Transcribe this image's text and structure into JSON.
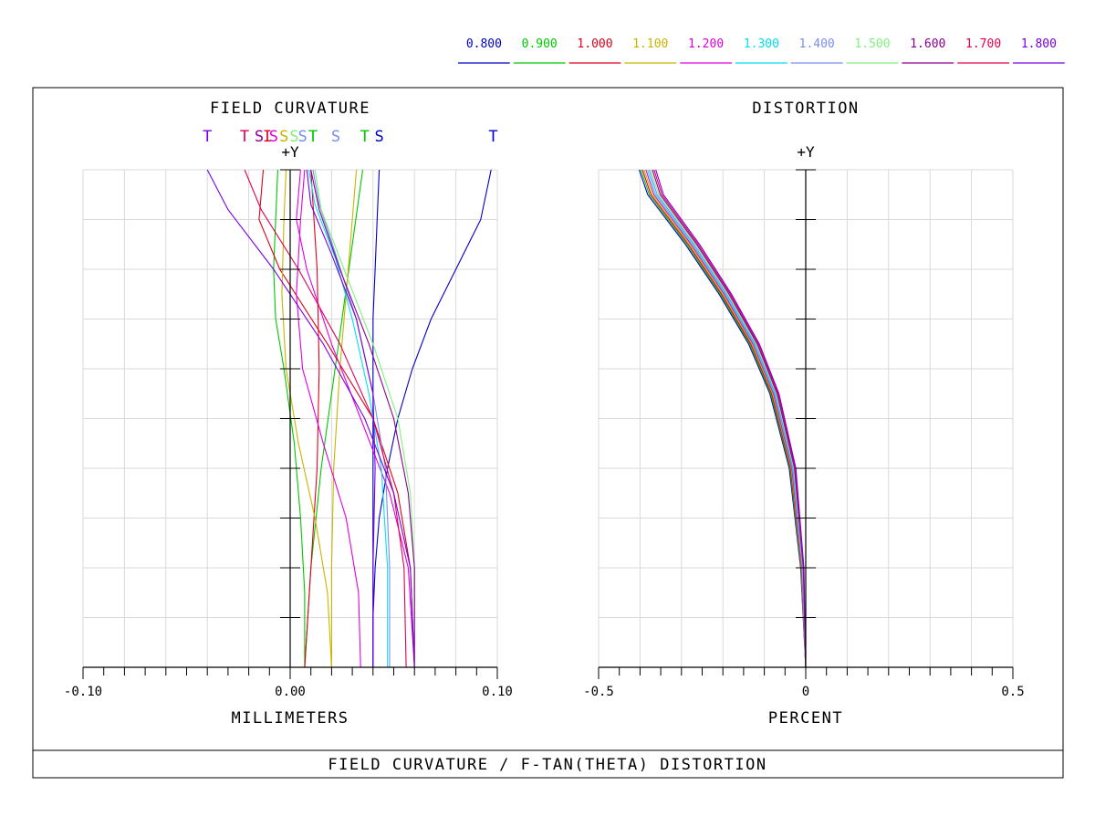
{
  "legend": [
    {
      "label": "0.800",
      "color": "#0000c8"
    },
    {
      "label": "0.900",
      "color": "#00c800"
    },
    {
      "label": "1.000",
      "color": "#e0001c"
    },
    {
      "label": "1.100",
      "color": "#c8b400"
    },
    {
      "label": "1.200",
      "color": "#e000e0"
    },
    {
      "label": "1.300",
      "color": "#00e0f0"
    },
    {
      "label": "1.400",
      "color": "#7a8cf0"
    },
    {
      "label": "1.500",
      "color": "#80f080"
    },
    {
      "label": "1.600",
      "color": "#8a0090"
    },
    {
      "label": "1.700",
      "color": "#e00050"
    },
    {
      "label": "1.800",
      "color": "#7800e0"
    }
  ],
  "footer_title": "FIELD CURVATURE / F-TAN(THETA) DISTORTION",
  "chart_data": [
    {
      "type": "line",
      "title": "FIELD CURVATURE",
      "ylabel": "+Y",
      "xlabel": "MILLIMETERS",
      "xlim": [
        -0.1,
        0.1
      ],
      "ylim": [
        0,
        1
      ],
      "grid": true,
      "x_tick_labels": [
        "-0.10",
        "0.00",
        "0.10"
      ],
      "x_tick_values": [
        -0.1,
        0.0,
        0.1
      ],
      "top_marks": [
        {
          "text": "T",
          "x": -0.04,
          "color": "#7800e0"
        },
        {
          "text": "T",
          "x": -0.022,
          "color": "#e00050"
        },
        {
          "text": "S",
          "x": -0.015,
          "color": "#8a0090"
        },
        {
          "text": "I",
          "x": -0.011,
          "color": "#e0001c"
        },
        {
          "text": "S",
          "x": -0.008,
          "color": "#e000e0"
        },
        {
          "text": "S",
          "x": -0.003,
          "color": "#c8b400"
        },
        {
          "text": "S",
          "x": 0.002,
          "color": "#80f080"
        },
        {
          "text": "S",
          "x": 0.006,
          "color": "#7a8cf0"
        },
        {
          "text": "T",
          "x": 0.011,
          "color": "#00c800"
        },
        {
          "text": "S",
          "x": 0.022,
          "color": "#7a8cf0"
        },
        {
          "text": "T",
          "x": 0.036,
          "color": "#00c800"
        },
        {
          "text": "S",
          "x": 0.043,
          "color": "#0000c8"
        },
        {
          "text": "T",
          "x": 0.098,
          "color": "#0000c8"
        }
      ],
      "series": [
        {
          "color": "#0000c8",
          "points": [
            [
              0.04,
              0
            ],
            [
              0.04,
              0.1
            ],
            [
              0.041,
              0.2
            ],
            [
              0.043,
              0.3
            ],
            [
              0.047,
              0.4
            ],
            [
              0.052,
              0.5
            ],
            [
              0.059,
              0.6
            ],
            [
              0.068,
              0.7
            ],
            [
              0.08,
              0.8
            ],
            [
              0.092,
              0.9
            ],
            [
              0.097,
              1.0
            ]
          ]
        },
        {
          "color": "#0000c8",
          "points": [
            [
              0.04,
              0
            ],
            [
              0.04,
              0.15
            ],
            [
              0.04,
              0.3
            ],
            [
              0.04,
              0.45
            ],
            [
              0.04,
              0.6
            ],
            [
              0.04,
              0.7
            ],
            [
              0.041,
              0.8
            ],
            [
              0.042,
              0.9
            ],
            [
              0.043,
              1.0
            ]
          ]
        },
        {
          "color": "#00c800",
          "points": [
            [
              0.007,
              0
            ],
            [
              0.007,
              0.15
            ],
            [
              0.005,
              0.3
            ],
            [
              0.002,
              0.45
            ],
            [
              -0.003,
              0.6
            ],
            [
              -0.007,
              0.7
            ],
            [
              -0.008,
              0.8
            ],
            [
              -0.007,
              0.9
            ],
            [
              -0.006,
              1.0
            ]
          ]
        },
        {
          "color": "#00c800",
          "points": [
            [
              0.007,
              0
            ],
            [
              0.01,
              0.2
            ],
            [
              0.015,
              0.4
            ],
            [
              0.02,
              0.55
            ],
            [
              0.025,
              0.7
            ],
            [
              0.03,
              0.85
            ],
            [
              0.035,
              1.0
            ]
          ]
        },
        {
          "color": "#e0001c",
          "points": [
            [
              0.007,
              0
            ],
            [
              0.01,
              0.2
            ],
            [
              0.013,
              0.4
            ],
            [
              0.014,
              0.6
            ],
            [
              0.013,
              0.8
            ],
            [
              0.01,
              1.0
            ]
          ]
        },
        {
          "color": "#e0001c",
          "points": [
            [
              0.06,
              0
            ],
            [
              0.058,
              0.2
            ],
            [
              0.052,
              0.35
            ],
            [
              0.04,
              0.5
            ],
            [
              0.018,
              0.65
            ],
            [
              -0.005,
              0.8
            ],
            [
              -0.015,
              0.9
            ],
            [
              -0.013,
              1.0
            ]
          ]
        },
        {
          "color": "#c8b400",
          "points": [
            [
              0.02,
              0
            ],
            [
              0.018,
              0.15
            ],
            [
              0.012,
              0.3
            ],
            [
              0.004,
              0.45
            ],
            [
              -0.002,
              0.6
            ],
            [
              -0.004,
              0.75
            ],
            [
              -0.003,
              0.9
            ],
            [
              -0.002,
              1.0
            ]
          ]
        },
        {
          "color": "#c8b400",
          "points": [
            [
              0.02,
              0
            ],
            [
              0.02,
              0.2
            ],
            [
              0.021,
              0.4
            ],
            [
              0.024,
              0.6
            ],
            [
              0.028,
              0.8
            ],
            [
              0.032,
              1.0
            ]
          ]
        },
        {
          "color": "#e000e0",
          "points": [
            [
              0.034,
              0
            ],
            [
              0.033,
              0.15
            ],
            [
              0.027,
              0.3
            ],
            [
              0.016,
              0.45
            ],
            [
              0.006,
              0.6
            ],
            [
              0.003,
              0.75
            ],
            [
              0.005,
              0.9
            ],
            [
              0.007,
              1.0
            ]
          ]
        },
        {
          "color": "#e000e0",
          "points": [
            [
              0.06,
              0
            ],
            [
              0.057,
              0.2
            ],
            [
              0.048,
              0.35
            ],
            [
              0.034,
              0.5
            ],
            [
              0.02,
              0.65
            ],
            [
              0.008,
              0.8
            ],
            [
              0.003,
              0.9
            ],
            [
              0.005,
              1.0
            ]
          ]
        },
        {
          "color": "#00e0f0",
          "points": [
            [
              0.047,
              0
            ],
            [
              0.047,
              0.2
            ],
            [
              0.044,
              0.4
            ],
            [
              0.038,
              0.55
            ],
            [
              0.03,
              0.7
            ],
            [
              0.022,
              0.82
            ],
            [
              0.012,
              0.93
            ],
            [
              0.009,
              1.0
            ]
          ]
        },
        {
          "color": "#7a8cf0",
          "points": [
            [
              0.048,
              0
            ],
            [
              0.048,
              0.2
            ],
            [
              0.046,
              0.4
            ],
            [
              0.04,
              0.55
            ],
            [
              0.032,
              0.7
            ],
            [
              0.022,
              0.83
            ],
            [
              0.014,
              0.93
            ],
            [
              0.011,
              1.0
            ]
          ]
        },
        {
          "color": "#80f080",
          "points": [
            [
              0.06,
              0
            ],
            [
              0.06,
              0.2
            ],
            [
              0.058,
              0.35
            ],
            [
              0.052,
              0.5
            ],
            [
              0.04,
              0.65
            ],
            [
              0.026,
              0.8
            ],
            [
              0.015,
              0.92
            ],
            [
              0.012,
              1.0
            ]
          ]
        },
        {
          "color": "#8a0090",
          "points": [
            [
              0.06,
              0
            ],
            [
              0.06,
              0.2
            ],
            [
              0.057,
              0.35
            ],
            [
              0.05,
              0.5
            ],
            [
              0.038,
              0.65
            ],
            [
              0.024,
              0.8
            ],
            [
              0.014,
              0.92
            ],
            [
              0.01,
              1.0
            ]
          ]
        },
        {
          "color": "#e00050",
          "points": [
            [
              0.056,
              0
            ],
            [
              0.055,
              0.2
            ],
            [
              0.05,
              0.35
            ],
            [
              0.04,
              0.5
            ],
            [
              0.024,
              0.65
            ],
            [
              0.004,
              0.8
            ],
            [
              -0.014,
              0.92
            ],
            [
              -0.022,
              1.0
            ]
          ]
        },
        {
          "color": "#7800e0",
          "points": [
            [
              0.06,
              0
            ],
            [
              0.058,
              0.2
            ],
            [
              0.05,
              0.35
            ],
            [
              0.036,
              0.5
            ],
            [
              0.016,
              0.65
            ],
            [
              -0.008,
              0.8
            ],
            [
              -0.03,
              0.92
            ],
            [
              -0.04,
              1.0
            ]
          ]
        },
        {
          "color": "#7800e0",
          "points": [
            [
              0.04,
              0
            ],
            [
              0.04,
              0.2
            ],
            [
              0.041,
              0.4
            ],
            [
              0.04,
              0.55
            ],
            [
              0.032,
              0.7
            ],
            [
              0.02,
              0.83
            ],
            [
              0.01,
              0.93
            ],
            [
              0.008,
              1.0
            ]
          ]
        }
      ]
    },
    {
      "type": "line",
      "title": "DISTORTION",
      "ylabel": "+Y",
      "xlabel": "PERCENT",
      "xlim": [
        -0.5,
        0.5
      ],
      "ylim": [
        0,
        1
      ],
      "grid": true,
      "x_tick_labels": [
        "-0.5",
        "0",
        "0.5"
      ],
      "x_tick_values": [
        -0.5,
        0,
        0.5
      ],
      "series_offsets": [
        -0.012,
        -0.008,
        -0.004,
        0.0,
        0.004,
        0.008,
        0.012,
        0.016,
        0.02,
        0.024,
        0.028
      ],
      "series": [
        {
          "color": "#c8b400",
          "points": [
            [
              0,
              0
            ],
            [
              -0.01,
              0.2
            ],
            [
              -0.035,
              0.4
            ],
            [
              -0.08,
              0.55
            ],
            [
              -0.13,
              0.65
            ],
            [
              -0.2,
              0.75
            ],
            [
              -0.28,
              0.85
            ],
            [
              -0.37,
              0.95
            ],
            [
              -0.39,
              1.0
            ]
          ]
        }
      ]
    }
  ]
}
